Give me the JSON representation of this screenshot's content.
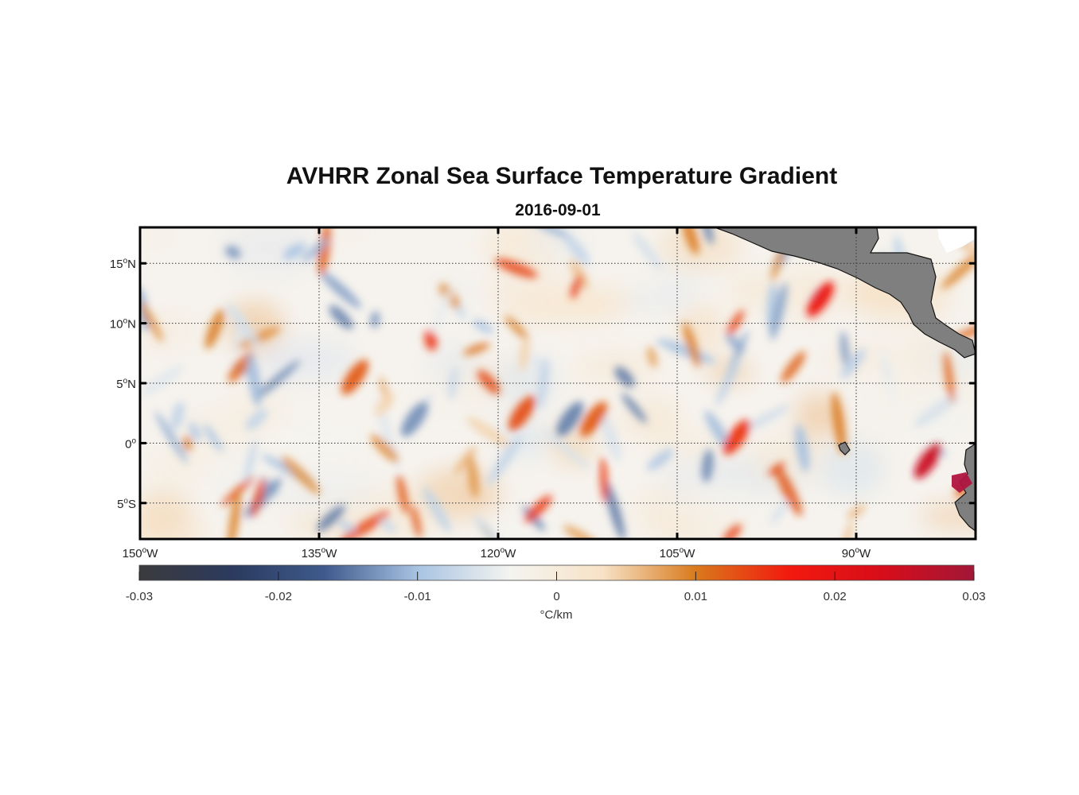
{
  "chart_data": {
    "type": "heatmap",
    "title": "AVHRR Zonal Sea Surface Temperature Gradient",
    "subtitle": "2016-09-01",
    "x_axis": {
      "ticks": [
        {
          "value": -150,
          "deg": "150",
          "hemi": "W"
        },
        {
          "value": -135,
          "deg": "135",
          "hemi": "W"
        },
        {
          "value": -120,
          "deg": "120",
          "hemi": "W"
        },
        {
          "value": -105,
          "deg": "105",
          "hemi": "W"
        },
        {
          "value": -90,
          "deg": "90",
          "hemi": "W"
        }
      ],
      "range": [
        -150,
        -80
      ]
    },
    "y_axis": {
      "ticks": [
        {
          "value": 15,
          "deg": "15",
          "hemi": "N"
        },
        {
          "value": 10,
          "deg": "10",
          "hemi": "N"
        },
        {
          "value": 5,
          "deg": "5",
          "hemi": "N"
        },
        {
          "value": 0,
          "deg": "0",
          "hemi": ""
        },
        {
          "value": -5,
          "deg": "5",
          "hemi": "S"
        }
      ],
      "range": [
        -8,
        18
      ]
    },
    "colorbar": {
      "range": [
        -0.03,
        0.03
      ],
      "ticks": [
        "-0.03",
        "-0.02",
        "-0.01",
        "0",
        "0.01",
        "0.02",
        "0.03"
      ],
      "unit": "°C/km",
      "stops": [
        "#3b3b3d",
        "#2b3a5e",
        "#3f5a8c",
        "#a8c3e2",
        "#f4f4f0",
        "#f7e2c6",
        "#d97a1c",
        "#f21a0e",
        "#d80d1a",
        "#a11737"
      ]
    },
    "features": [
      {
        "lon": -118,
        "lat": 2.5,
        "value": 0.013,
        "kind": "warm-front"
      },
      {
        "lon": -114,
        "lat": 2.0,
        "value": -0.014,
        "kind": "cold-front"
      },
      {
        "lon": -112,
        "lat": 2.0,
        "value": 0.012,
        "kind": "warm-front"
      },
      {
        "lon": -100,
        "lat": 0.5,
        "value": 0.015,
        "kind": "warm-front"
      },
      {
        "lon": -84,
        "lat": -1.5,
        "value": 0.025,
        "kind": "warm-front"
      },
      {
        "lon": -132,
        "lat": 5.5,
        "value": 0.012,
        "kind": "warm-front"
      },
      {
        "lon": -127,
        "lat": 2.0,
        "value": -0.013,
        "kind": "cold-front"
      },
      {
        "lon": -93,
        "lat": 12.0,
        "value": 0.018,
        "kind": "warm-front"
      }
    ],
    "land": [
      "Central America",
      "Galapagos",
      "South America coast"
    ]
  }
}
